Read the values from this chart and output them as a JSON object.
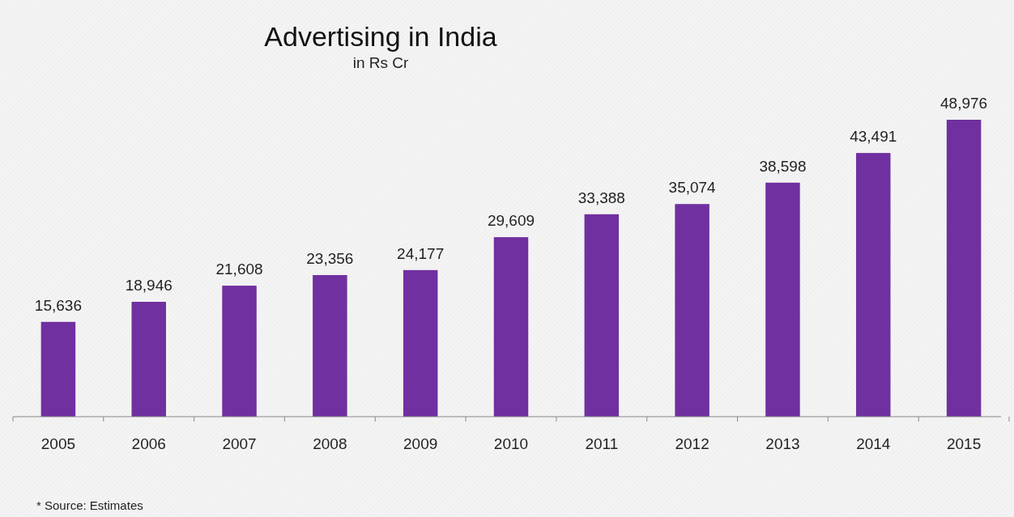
{
  "chart_data": {
    "type": "bar",
    "title": "Advertising in India",
    "subtitle": "in Rs Cr",
    "categories": [
      "2005",
      "2006",
      "2007",
      "2008",
      "2009",
      "2010",
      "2011",
      "2012",
      "2013",
      "2014",
      "2015"
    ],
    "values": [
      15636,
      18946,
      21608,
      23356,
      24177,
      29609,
      33388,
      35074,
      38598,
      43491,
      48976
    ],
    "value_labels": [
      "15,636",
      "18,946",
      "21,608",
      "23,356",
      "24,177",
      "29,609",
      "33,388",
      "35,074",
      "38,598",
      "43,491",
      "48,976"
    ],
    "color": "#7030a0",
    "annotations": [
      "* Source: Estimates"
    ]
  }
}
